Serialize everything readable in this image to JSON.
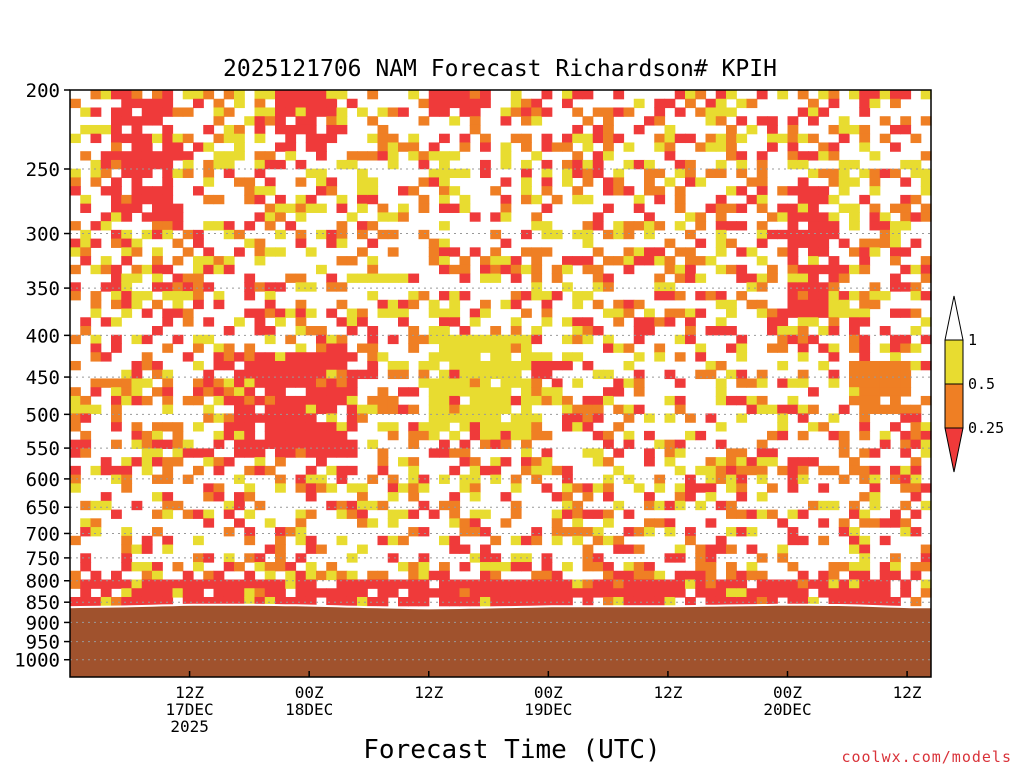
{
  "chart_data": {
    "type": "heatmap",
    "title": "2025121706 NAM Forecast Richardson# KPIH",
    "xlabel": "Forecast Time (UTC)",
    "ylabel": "",
    "credit": "coolwx.com/models",
    "y_scale": "log",
    "y_inverted": true,
    "y_range_hpa": [
      200,
      1000
    ],
    "y_ticks": [
      200,
      250,
      300,
      350,
      400,
      450,
      500,
      550,
      600,
      650,
      700,
      750,
      800,
      850,
      900,
      950,
      1000
    ],
    "x_range_hours": [
      -6,
      78
    ],
    "x_ticks": [
      {
        "hour": 6,
        "lines": [
          "12Z",
          "17DEC",
          "2025"
        ]
      },
      {
        "hour": 18,
        "lines": [
          "00Z",
          "18DEC"
        ]
      },
      {
        "hour": 30,
        "lines": [
          "12Z"
        ]
      },
      {
        "hour": 42,
        "lines": [
          "00Z",
          "19DEC"
        ]
      },
      {
        "hour": 54,
        "lines": [
          "12Z"
        ]
      },
      {
        "hour": 66,
        "lines": [
          "00Z",
          "20DEC"
        ]
      },
      {
        "hour": 78,
        "lines": [
          "12Z"
        ]
      }
    ],
    "grid": "dotted horizontal",
    "legend": {
      "placement": "right",
      "categories": [
        {
          "range": "0.5 to 1",
          "color": "#e8dc30"
        },
        {
          "range": "0.25 to 0.5",
          "color": "#ef7f24"
        },
        {
          "range": "below 0.25",
          "color": "#ef3a3a"
        }
      ],
      "tick_labels": [
        "1",
        "0.5",
        "0.25"
      ]
    },
    "ground_color": "#a0522d",
    "series": [
      {
        "name": "surface_pressure_hpa",
        "x": [
          -6,
          0,
          6,
          12,
          18,
          24,
          30,
          36,
          42,
          48,
          54,
          60,
          66,
          72,
          78
        ],
        "values": [
          862,
          860,
          856,
          856,
          858,
          862,
          865,
          863,
          860,
          860,
          860,
          858,
          856,
          857,
          862
        ]
      }
    ],
    "band_levels": [
      {
        "x_range": [
          -6,
          78
        ],
        "p_range": [
          800,
          860
        ],
        "category": "below 0.25",
        "note": "near-surface low-Ri layer"
      },
      {
        "x_range": [
          -2,
          4
        ],
        "p_range": [
          200,
          290
        ],
        "category": "below 0.25"
      },
      {
        "x_range": [
          14,
          20
        ],
        "p_range": [
          200,
          240
        ],
        "category": "below 0.25"
      },
      {
        "x_range": [
          30,
          36
        ],
        "p_range": [
          200,
          215
        ],
        "category": "below 0.25"
      },
      {
        "x_range": [
          10,
          22
        ],
        "p_range": [
          420,
          560
        ],
        "category": "below 0.25"
      },
      {
        "x_range": [
          66,
          70
        ],
        "p_range": [
          260,
          380
        ],
        "category": "below 0.25"
      },
      {
        "x_range": [
          30,
          40
        ],
        "p_range": [
          400,
          540
        ],
        "category": "0.5 to 1"
      },
      {
        "x_range": [
          72,
          78
        ],
        "p_range": [
          430,
          500
        ],
        "category": "0.25 to 0.5"
      }
    ]
  }
}
